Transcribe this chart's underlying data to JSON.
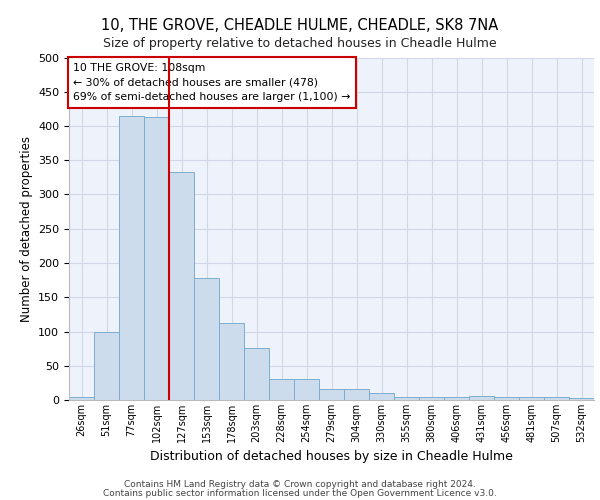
{
  "title1": "10, THE GROVE, CHEADLE HULME, CHEADLE, SK8 7NA",
  "title2": "Size of property relative to detached houses in Cheadle Hulme",
  "xlabel": "Distribution of detached houses by size in Cheadle Hulme",
  "ylabel": "Number of detached properties",
  "bar_labels": [
    "26sqm",
    "51sqm",
    "77sqm",
    "102sqm",
    "127sqm",
    "153sqm",
    "178sqm",
    "203sqm",
    "228sqm",
    "254sqm",
    "279sqm",
    "304sqm",
    "330sqm",
    "355sqm",
    "380sqm",
    "406sqm",
    "431sqm",
    "456sqm",
    "481sqm",
    "507sqm",
    "532sqm"
  ],
  "bar_values": [
    5,
    100,
    415,
    413,
    333,
    178,
    113,
    76,
    30,
    30,
    16,
    16,
    10,
    5,
    5,
    5,
    6,
    5,
    5,
    5,
    3
  ],
  "bar_color": "#cddcec",
  "bar_edgecolor": "#7aaed0",
  "grid_color": "#d0d8e8",
  "bg_color": "#eef2fa",
  "vline_x": 3.5,
  "vline_color": "#cc0000",
  "annotation_text": "10 THE GROVE: 108sqm\n← 30% of detached houses are smaller (478)\n69% of semi-detached houses are larger (1,100) →",
  "annotation_box_color": "#cc0000",
  "ylim": [
    0,
    500
  ],
  "yticks": [
    0,
    50,
    100,
    150,
    200,
    250,
    300,
    350,
    400,
    450,
    500
  ],
  "footer1": "Contains HM Land Registry data © Crown copyright and database right 2024.",
  "footer2": "Contains public sector information licensed under the Open Government Licence v3.0."
}
